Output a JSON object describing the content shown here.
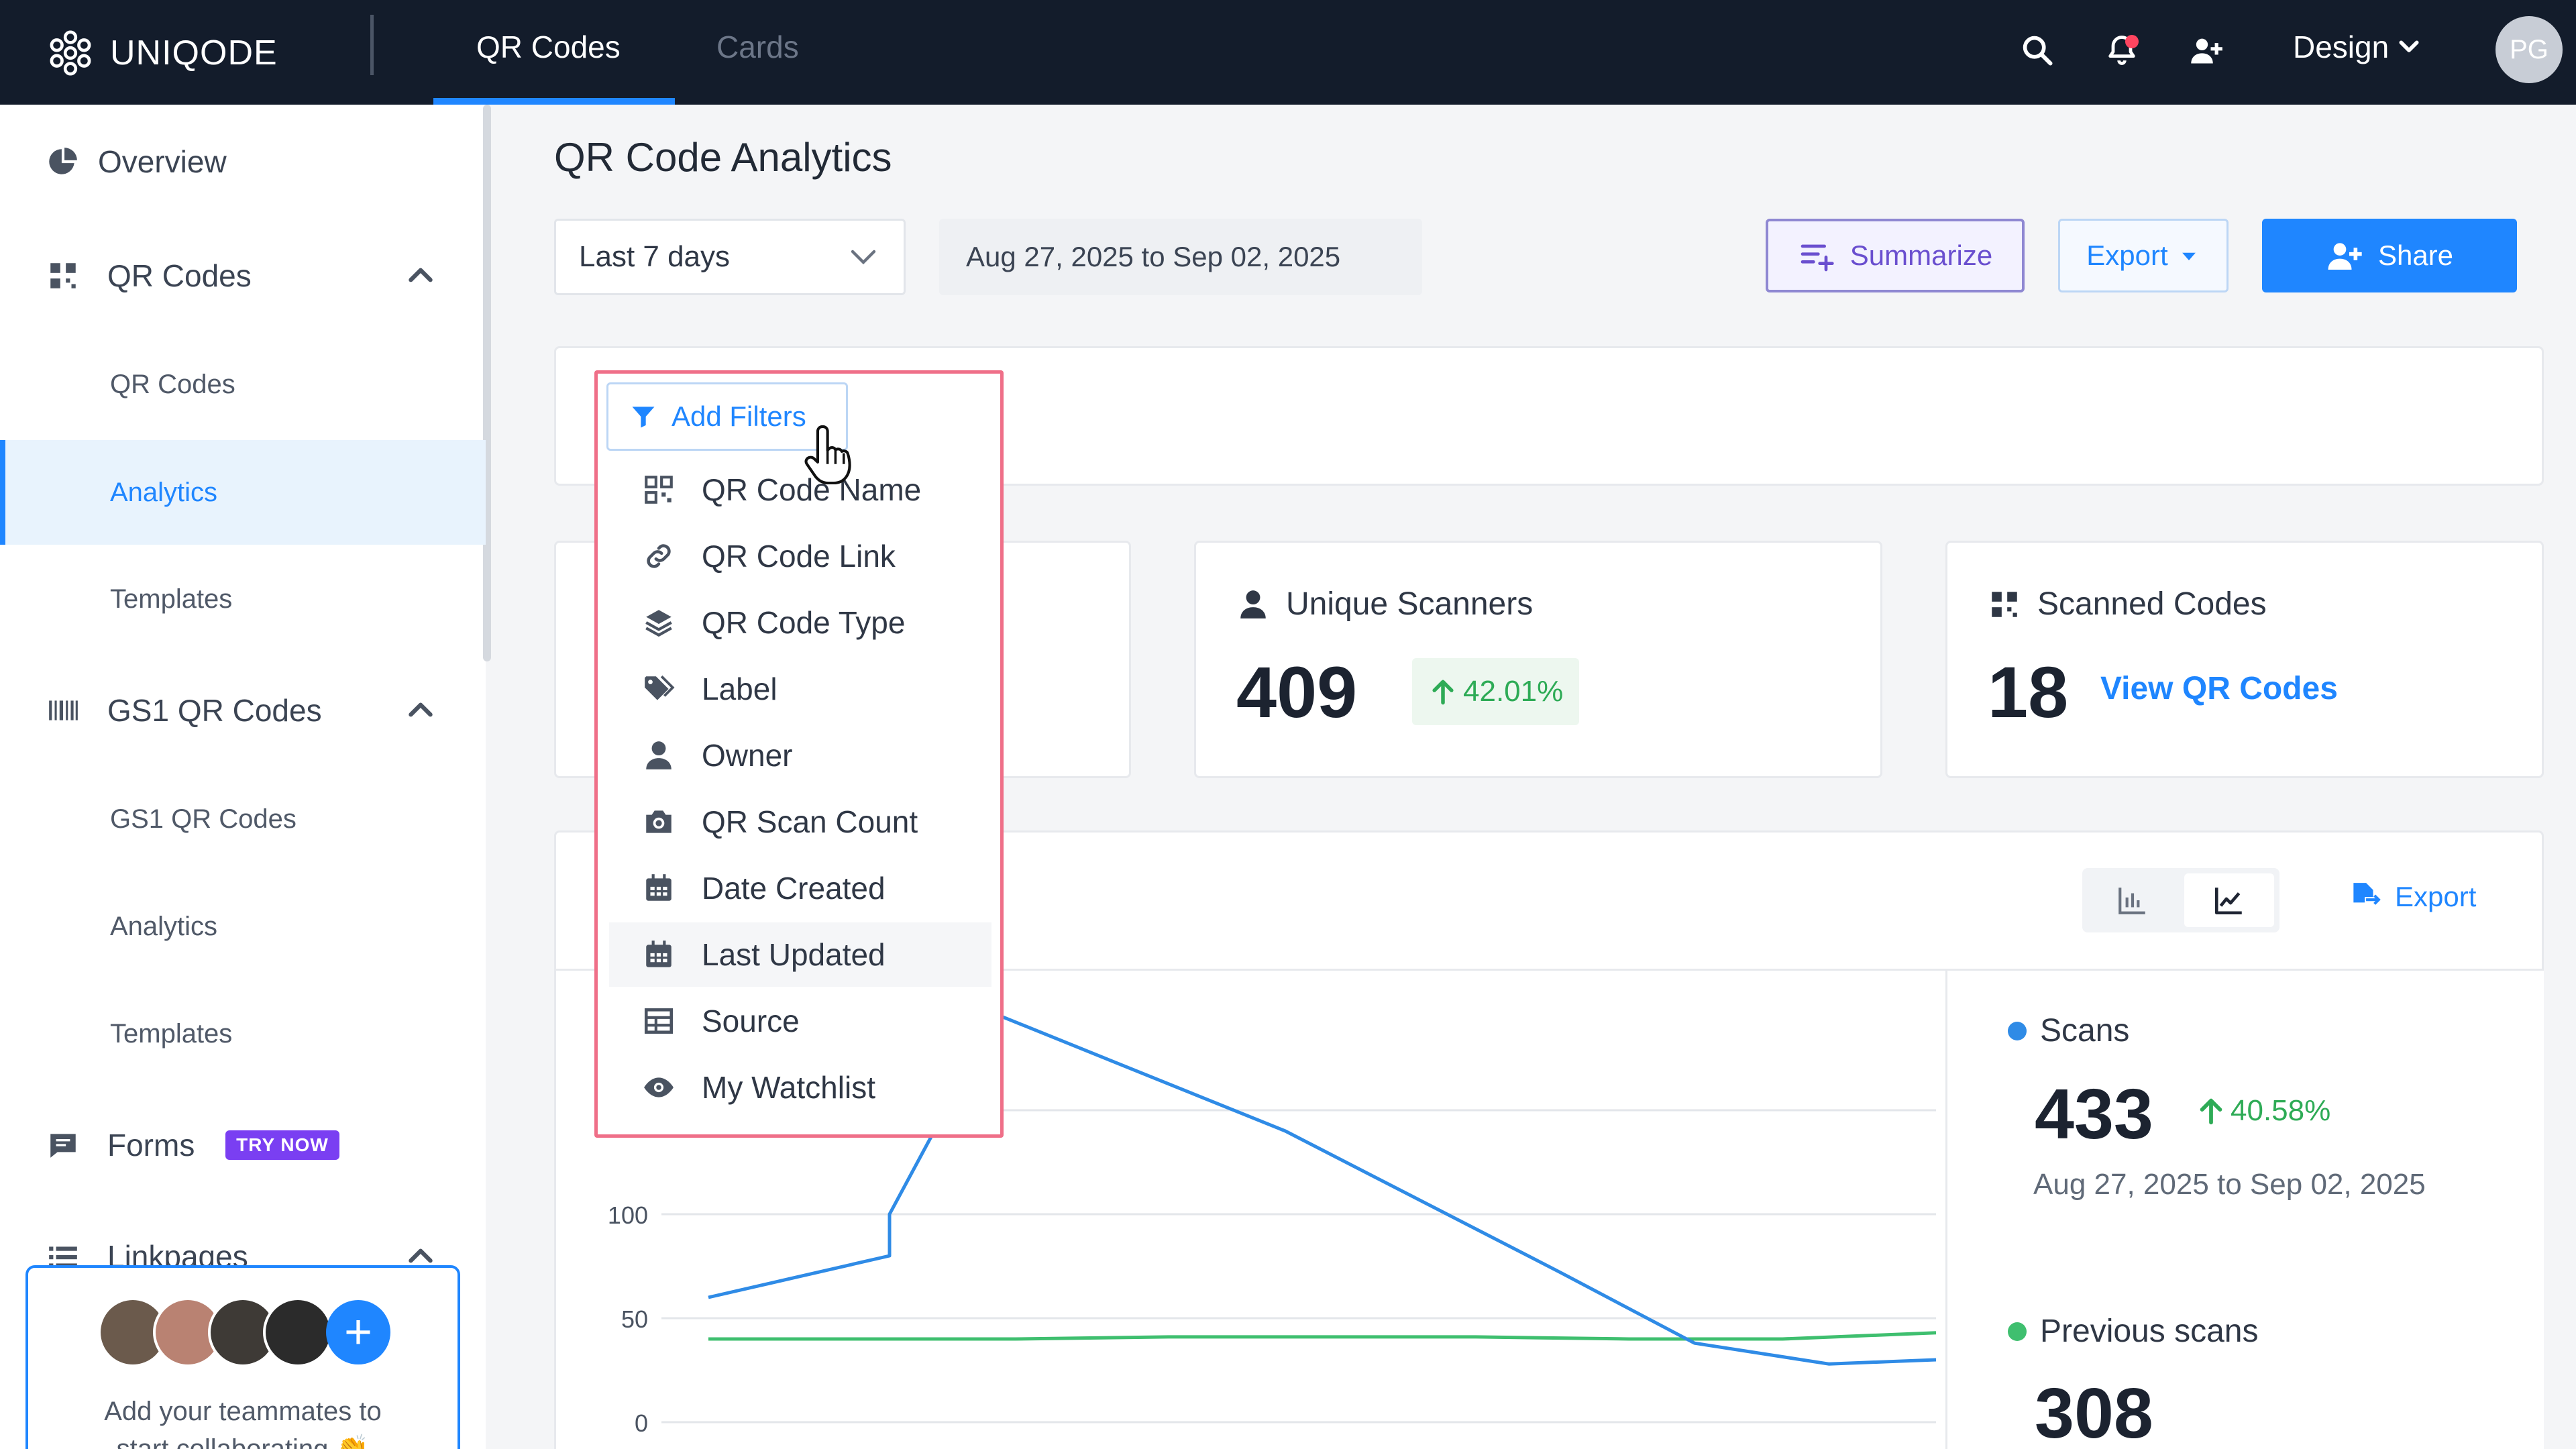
{
  "app": {
    "brand": "UNIQODE",
    "top_tabs": [
      {
        "label": "QR Codes",
        "active": true
      },
      {
        "label": "Cards",
        "active": false
      }
    ],
    "workspace": "Design",
    "user_initials": "PG",
    "accent_color": "#1f86ff",
    "top_icons": [
      "search-icon",
      "bell-icon",
      "add-user-icon",
      "chevron-down-icon"
    ]
  },
  "sidebar": {
    "overview": "Overview",
    "qr_section": "QR Codes",
    "qr_items": [
      "QR Codes",
      "Analytics",
      "Templates"
    ],
    "gs1_section": "GS1 QR Codes",
    "gs1_items": [
      "GS1 QR Codes",
      "Analytics",
      "Templates"
    ],
    "forms": "Forms",
    "forms_badge": "TRY NOW",
    "linkpages": "Linkpages",
    "invite_text_line1": "Add your teammates to",
    "invite_text_line2": "start collaborating 👏"
  },
  "main": {
    "title": "QR Code Analytics",
    "range_select": "Last 7 days",
    "date_range": "Aug 27, 2025 to Sep 02, 2025",
    "summarize_label": "Summarize",
    "export_label": "Export",
    "share_label": "Share",
    "add_filters_label": "Add Filters",
    "filter_menu": [
      {
        "label": "QR Code Name",
        "icon": "qr-grid-icon"
      },
      {
        "label": "QR Code Link",
        "icon": "link-icon"
      },
      {
        "label": "QR Code Type",
        "icon": "layers-icon"
      },
      {
        "label": "Label",
        "icon": "tag-icon"
      },
      {
        "label": "Owner",
        "icon": "person-icon"
      },
      {
        "label": "QR Scan Count",
        "icon": "camera-icon"
      },
      {
        "label": "Date Created",
        "icon": "calendar-icon"
      },
      {
        "label": "Last Updated",
        "icon": "calendar-icon"
      },
      {
        "label": "Source",
        "icon": "table-icon"
      },
      {
        "label": "My Watchlist",
        "icon": "eye-icon"
      }
    ],
    "unique_scanners": {
      "title": "Unique Scanners",
      "value": "409",
      "delta": "42.01%"
    },
    "scanned_codes": {
      "title": "Scanned Codes",
      "value": "18",
      "link": "View QR Codes"
    },
    "chart_export_label": "Export",
    "legend": {
      "scans_label": "Scans",
      "scans_value": "433",
      "scans_delta": "40.58%",
      "scans_range": "Aug 27, 2025 to Sep 02, 2025",
      "prev_label": "Previous scans",
      "prev_value": "308",
      "scans_color": "#2f8be6",
      "prev_color": "#3fbf6f"
    }
  },
  "chart_data": {
    "type": "line",
    "y_ticks": [
      "0",
      "50",
      "100"
    ],
    "ylim": [
      0,
      150
    ],
    "series": [
      {
        "name": "Scans",
        "color": "#2f8be6",
        "values": [
          60,
          80,
          100,
          196,
          140,
          72,
          38,
          28,
          30
        ]
      },
      {
        "name": "Previous scans",
        "color": "#3fbf6f",
        "values": [
          40,
          40,
          40,
          41,
          41,
          41,
          40,
          40,
          43
        ]
      }
    ]
  }
}
